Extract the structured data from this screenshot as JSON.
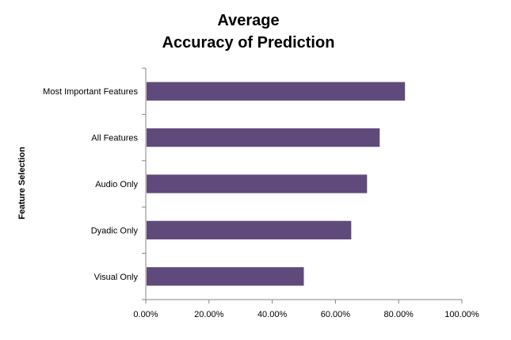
{
  "chart_data": {
    "type": "bar",
    "orientation": "horizontal",
    "title_lines": [
      "Average",
      "Accuracy of Prediction"
    ],
    "xlabel": "",
    "ylabel": "Feature Selection",
    "categories": [
      "Most Important Features",
      "All Features",
      "Audio Only",
      "Dyadic Only",
      "Visual Only"
    ],
    "values": [
      82,
      74,
      70,
      65,
      50
    ],
    "xlim": [
      0,
      100
    ],
    "x_ticks": [
      0,
      20,
      40,
      60,
      80,
      100
    ],
    "x_tick_labels": [
      "0.00%",
      "20.00%",
      "40.00%",
      "60.00%",
      "80.00%",
      "100.00%"
    ],
    "bar_color": "#604a7b",
    "grid": false,
    "legend": "none"
  }
}
